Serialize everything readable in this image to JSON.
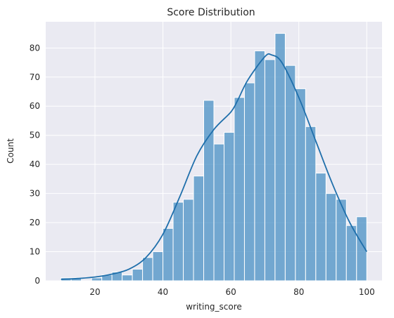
{
  "chart_data": {
    "type": "bar",
    "title": "Score Distribution",
    "xlabel": "writing_score",
    "ylabel": "Count",
    "xlim": [
      5.5,
      104.5
    ],
    "ylim": [
      0,
      89
    ],
    "xticks": [
      20,
      40,
      60,
      80,
      100
    ],
    "yticks": [
      0,
      10,
      20,
      30,
      40,
      50,
      60,
      70,
      80
    ],
    "grid": true,
    "bar_color": "#4a90c4",
    "bar_edge_color": "#ffffff",
    "kde_color": "#1f6fab",
    "background_color": "#eaeaf2",
    "bins": [
      {
        "x0": 10,
        "x1": 13,
        "count": 1
      },
      {
        "x0": 13,
        "x1": 16,
        "count": 1
      },
      {
        "x0": 16,
        "x1": 19,
        "count": 0
      },
      {
        "x0": 19,
        "x1": 22,
        "count": 1
      },
      {
        "x0": 22,
        "x1": 25,
        "count": 2
      },
      {
        "x0": 25,
        "x1": 28,
        "count": 3
      },
      {
        "x0": 28,
        "x1": 31,
        "count": 2
      },
      {
        "x0": 31,
        "x1": 34,
        "count": 4
      },
      {
        "x0": 34,
        "x1": 37,
        "count": 8
      },
      {
        "x0": 37,
        "x1": 40,
        "count": 10
      },
      {
        "x0": 40,
        "x1": 43,
        "count": 18
      },
      {
        "x0": 43,
        "x1": 46,
        "count": 27
      },
      {
        "x0": 46,
        "x1": 49,
        "count": 28
      },
      {
        "x0": 49,
        "x1": 52,
        "count": 36
      },
      {
        "x0": 52,
        "x1": 55,
        "count": 62
      },
      {
        "x0": 55,
        "x1": 58,
        "count": 47
      },
      {
        "x0": 58,
        "x1": 61,
        "count": 51
      },
      {
        "x0": 61,
        "x1": 64,
        "count": 63
      },
      {
        "x0": 64,
        "x1": 67,
        "count": 68
      },
      {
        "x0": 67,
        "x1": 70,
        "count": 79
      },
      {
        "x0": 70,
        "x1": 73,
        "count": 76
      },
      {
        "x0": 73,
        "x1": 76,
        "count": 85
      },
      {
        "x0": 76,
        "x1": 79,
        "count": 74
      },
      {
        "x0": 79,
        "x1": 82,
        "count": 66
      },
      {
        "x0": 82,
        "x1": 85,
        "count": 53
      },
      {
        "x0": 85,
        "x1": 88,
        "count": 37
      },
      {
        "x0": 88,
        "x1": 91,
        "count": 30
      },
      {
        "x0": 91,
        "x1": 94,
        "count": 28
      },
      {
        "x0": 94,
        "x1": 97,
        "count": 19
      },
      {
        "x0": 97,
        "x1": 100,
        "count": 22
      }
    ],
    "kde": {
      "x": [
        10,
        15,
        20,
        25,
        30,
        35,
        40,
        45,
        50,
        55,
        60,
        62,
        65,
        70,
        72,
        75,
        80,
        85,
        90,
        95,
        100
      ],
      "y": [
        0.5,
        0.8,
        1.3,
        2.3,
        4,
        8,
        16,
        29,
        43,
        52,
        58,
        62,
        69,
        77,
        77.6,
        75,
        63,
        48,
        33,
        20,
        10
      ]
    }
  }
}
